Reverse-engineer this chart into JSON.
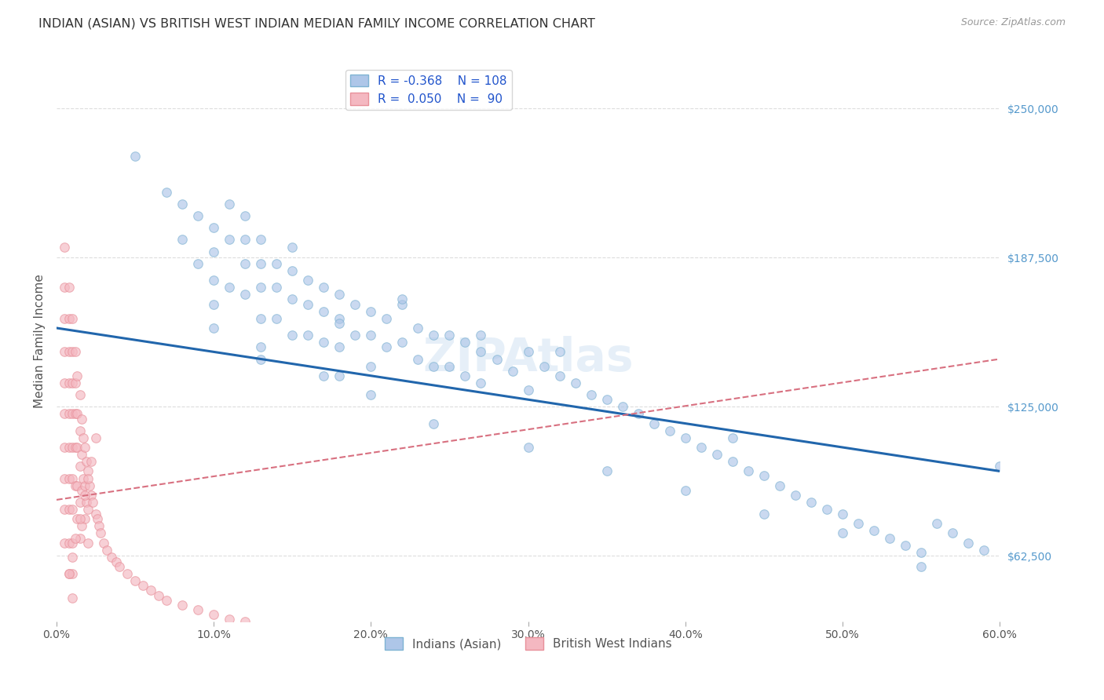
{
  "title": "INDIAN (ASIAN) VS BRITISH WEST INDIAN MEDIAN FAMILY INCOME CORRELATION CHART",
  "source": "Source: ZipAtlas.com",
  "ylabel": "Median Family Income",
  "x_min": 0.0,
  "x_max": 0.6,
  "y_min": 35000,
  "y_max": 270000,
  "ytick_labels": [
    "$62,500",
    "$125,000",
    "$187,500",
    "$250,000"
  ],
  "ytick_values": [
    62500,
    125000,
    187500,
    250000
  ],
  "xtick_labels": [
    "0.0%",
    "10.0%",
    "20.0%",
    "30.0%",
    "40.0%",
    "50.0%",
    "60.0%"
  ],
  "xtick_values": [
    0.0,
    0.1,
    0.2,
    0.3,
    0.4,
    0.5,
    0.6
  ],
  "legend_entries": [
    {
      "label": "Indians (Asian)",
      "color": "#aec6e8",
      "R": "-0.368",
      "N": "108"
    },
    {
      "label": "British West Indians",
      "color": "#f4b8c1",
      "R": "0.050",
      "N": "90"
    }
  ],
  "watermark": "ZIPAtlas",
  "blue_scatter_x": [
    0.05,
    0.07,
    0.08,
    0.08,
    0.09,
    0.09,
    0.1,
    0.1,
    0.1,
    0.1,
    0.1,
    0.11,
    0.11,
    0.11,
    0.12,
    0.12,
    0.12,
    0.12,
    0.13,
    0.13,
    0.13,
    0.13,
    0.13,
    0.14,
    0.14,
    0.14,
    0.15,
    0.15,
    0.15,
    0.15,
    0.16,
    0.16,
    0.16,
    0.17,
    0.17,
    0.17,
    0.18,
    0.18,
    0.18,
    0.18,
    0.19,
    0.19,
    0.2,
    0.2,
    0.2,
    0.21,
    0.21,
    0.22,
    0.22,
    0.23,
    0.23,
    0.24,
    0.24,
    0.25,
    0.25,
    0.26,
    0.26,
    0.27,
    0.27,
    0.28,
    0.29,
    0.3,
    0.3,
    0.31,
    0.32,
    0.33,
    0.34,
    0.35,
    0.36,
    0.37,
    0.38,
    0.39,
    0.4,
    0.41,
    0.42,
    0.43,
    0.44,
    0.45,
    0.46,
    0.47,
    0.48,
    0.49,
    0.5,
    0.51,
    0.52,
    0.53,
    0.54,
    0.55,
    0.56,
    0.57,
    0.58,
    0.59,
    0.6,
    0.13,
    0.17,
    0.2,
    0.24,
    0.3,
    0.35,
    0.4,
    0.45,
    0.5,
    0.55,
    0.27,
    0.32,
    0.18,
    0.43,
    0.22
  ],
  "blue_scatter_y": [
    230000,
    215000,
    210000,
    195000,
    205000,
    185000,
    200000,
    190000,
    178000,
    168000,
    158000,
    210000,
    195000,
    175000,
    205000,
    195000,
    185000,
    172000,
    195000,
    185000,
    175000,
    162000,
    150000,
    185000,
    175000,
    162000,
    192000,
    182000,
    170000,
    155000,
    178000,
    168000,
    155000,
    175000,
    165000,
    152000,
    172000,
    162000,
    150000,
    138000,
    168000,
    155000,
    165000,
    155000,
    142000,
    162000,
    150000,
    168000,
    152000,
    158000,
    145000,
    155000,
    142000,
    155000,
    142000,
    152000,
    138000,
    148000,
    135000,
    145000,
    140000,
    148000,
    132000,
    142000,
    138000,
    135000,
    130000,
    128000,
    125000,
    122000,
    118000,
    115000,
    112000,
    108000,
    105000,
    102000,
    98000,
    96000,
    92000,
    88000,
    85000,
    82000,
    80000,
    76000,
    73000,
    70000,
    67000,
    64000,
    76000,
    72000,
    68000,
    65000,
    100000,
    145000,
    138000,
    130000,
    118000,
    108000,
    98000,
    90000,
    80000,
    72000,
    58000,
    155000,
    148000,
    160000,
    112000,
    170000
  ],
  "pink_scatter_x": [
    0.005,
    0.005,
    0.005,
    0.005,
    0.005,
    0.005,
    0.005,
    0.005,
    0.005,
    0.005,
    0.008,
    0.008,
    0.008,
    0.008,
    0.008,
    0.008,
    0.008,
    0.008,
    0.008,
    0.008,
    0.01,
    0.01,
    0.01,
    0.01,
    0.01,
    0.01,
    0.01,
    0.01,
    0.01,
    0.01,
    0.012,
    0.012,
    0.012,
    0.012,
    0.012,
    0.013,
    0.013,
    0.013,
    0.013,
    0.013,
    0.015,
    0.015,
    0.015,
    0.015,
    0.015,
    0.016,
    0.016,
    0.016,
    0.016,
    0.017,
    0.017,
    0.018,
    0.018,
    0.018,
    0.019,
    0.019,
    0.02,
    0.02,
    0.02,
    0.021,
    0.022,
    0.023,
    0.025,
    0.026,
    0.027,
    0.028,
    0.03,
    0.032,
    0.035,
    0.038,
    0.04,
    0.045,
    0.05,
    0.055,
    0.06,
    0.065,
    0.07,
    0.08,
    0.09,
    0.1,
    0.11,
    0.12,
    0.008,
    0.01,
    0.012,
    0.015,
    0.018,
    0.02,
    0.022,
    0.025
  ],
  "pink_scatter_y": [
    192000,
    175000,
    162000,
    148000,
    135000,
    122000,
    108000,
    95000,
    82000,
    68000,
    175000,
    162000,
    148000,
    135000,
    122000,
    108000,
    95000,
    82000,
    68000,
    55000,
    162000,
    148000,
    135000,
    122000,
    108000,
    95000,
    82000,
    68000,
    55000,
    45000,
    148000,
    135000,
    122000,
    108000,
    92000,
    138000,
    122000,
    108000,
    92000,
    78000,
    130000,
    115000,
    100000,
    85000,
    70000,
    120000,
    105000,
    90000,
    75000,
    112000,
    95000,
    108000,
    92000,
    78000,
    102000,
    85000,
    98000,
    82000,
    68000,
    92000,
    88000,
    85000,
    80000,
    78000,
    75000,
    72000,
    68000,
    65000,
    62000,
    60000,
    58000,
    55000,
    52000,
    50000,
    48000,
    46000,
    44000,
    42000,
    40000,
    38000,
    36000,
    35000,
    55000,
    62000,
    70000,
    78000,
    88000,
    95000,
    102000,
    112000
  ],
  "blue_line_x": [
    0.0,
    0.6
  ],
  "blue_line_y": [
    158000,
    98000
  ],
  "pink_line_x": [
    0.0,
    0.6
  ],
  "pink_line_y": [
    86000,
    145000
  ],
  "scatter_size": 70,
  "scatter_alpha": 0.65,
  "blue_scatter_color": "#aec6e8",
  "blue_scatter_edge": "#7fb3d3",
  "pink_scatter_color": "#f4b8c1",
  "pink_scatter_edge": "#e8909a",
  "blue_line_color": "#2166ac",
  "pink_line_color": "#d87080",
  "legend_text_color": "#2255cc",
  "background_color": "#ffffff",
  "grid_color": "#dddddd",
  "title_color": "#333333",
  "ytick_color": "#5599cc"
}
